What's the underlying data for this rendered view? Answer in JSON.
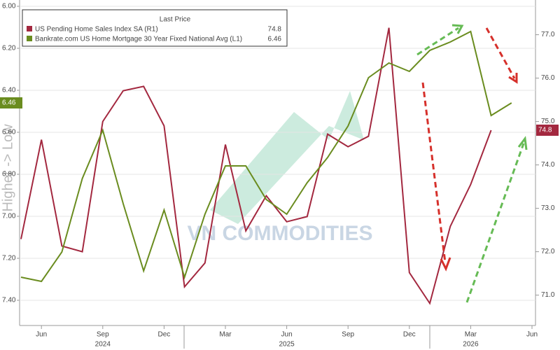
{
  "chart_data": {
    "type": "line",
    "y_label": "Higher -> Low",
    "watermark": "VN COMMODITIES",
    "legend_title": "Last Price",
    "x": [
      "2024-05",
      "2024-06",
      "2024-07",
      "2024-08",
      "2024-09",
      "2024-10",
      "2024-11",
      "2024-12",
      "2025-01",
      "2025-02",
      "2025-03",
      "2025-04",
      "2025-05",
      "2025-06",
      "2025-07",
      "2025-08",
      "2025-09",
      "2025-10",
      "2025-11",
      "2025-12",
      "2026-01",
      "2026-02",
      "2026-03",
      "2026-04",
      "2026-05"
    ],
    "xlim": [
      "2024-05",
      "2026-06"
    ],
    "xticks": [
      {
        "value": "2024-06",
        "label": "Jun"
      },
      {
        "value": "2024-09",
        "label": "Sep"
      },
      {
        "value": "2024-12",
        "label": "Dec"
      },
      {
        "value": "2025-03",
        "label": "Mar"
      },
      {
        "value": "2025-06",
        "label": "Jun"
      },
      {
        "value": "2025-09",
        "label": "Sep"
      },
      {
        "value": "2025-12",
        "label": "Dec"
      },
      {
        "value": "2026-03",
        "label": "Mar"
      },
      {
        "value": "2026-06",
        "label": "Jun"
      }
    ],
    "year_labels": [
      {
        "value": "2024-09",
        "label": "2024"
      },
      {
        "value": "2025-06",
        "label": "2025"
      },
      {
        "value": "2026-03",
        "label": "2026"
      }
    ],
    "ylim": [
      7.52,
      5.97
    ],
    "yticks": [
      {
        "value": 6,
        "label": "6.00"
      },
      {
        "value": 6.2,
        "label": "6.20"
      },
      {
        "value": 6.4,
        "label": "6.40"
      },
      {
        "value": 6.6,
        "label": "6.60"
      },
      {
        "value": 6.8,
        "label": "6.80"
      },
      {
        "value": 7,
        "label": "7.00"
      },
      {
        "value": 7.2,
        "label": "7.20"
      },
      {
        "value": 7.4,
        "label": "7.40"
      }
    ],
    "y2lim": [
      70.3,
      77.8
    ],
    "y2ticks": [
      {
        "value": 71,
        "label": "71.0"
      },
      {
        "value": 72,
        "label": "72.0"
      },
      {
        "value": 73,
        "label": "73.0"
      },
      {
        "value": 74,
        "label": "74.0"
      },
      {
        "value": 75,
        "label": "75.0"
      },
      {
        "value": 76,
        "label": "76.0"
      },
      {
        "value": 77,
        "label": "77.0"
      }
    ],
    "grid": true,
    "legend": "upper left",
    "series": [
      {
        "name": "US Pending Home Sales Index SA  (R1)",
        "color": "#a3283f",
        "axis": "y2",
        "last_value": 74.8,
        "values": [
          72.29,
          74.58,
          72.13,
          72.0,
          75.0,
          75.71,
          75.81,
          74.9,
          71.19,
          71.74,
          74.47,
          72.48,
          73.29,
          72.69,
          72.81,
          74.71,
          74.42,
          74.66,
          77.16,
          71.52,
          70.81,
          72.58,
          73.55,
          74.8,
          null
        ]
      },
      {
        "name": "Bankrate.com US Home Mortgage 30 Year Fixed National Avg  (L1)",
        "color": "#6a8c1f",
        "axis": "y",
        "last_value": 6.46,
        "values": [
          7.29,
          7.31,
          7.17,
          6.82,
          6.59,
          6.94,
          7.26,
          6.97,
          7.29,
          6.99,
          6.76,
          6.76,
          6.92,
          6.99,
          6.84,
          6.72,
          6.57,
          6.34,
          6.27,
          6.31,
          6.21,
          6.17,
          6.12,
          6.52,
          6.46
        ]
      }
    ]
  }
}
